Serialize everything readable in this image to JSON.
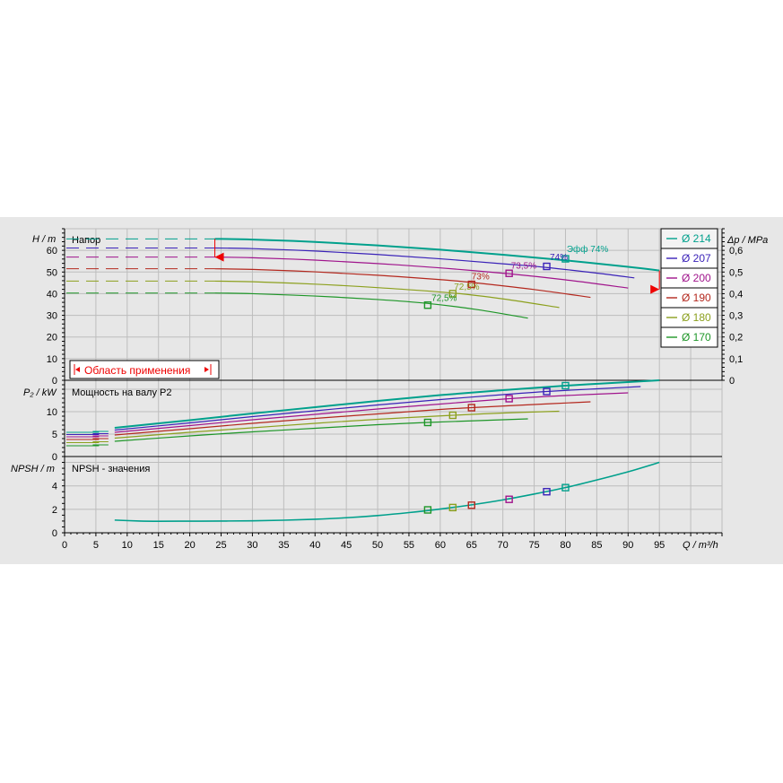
{
  "colors": {
    "d214": "#00a08c",
    "d207": "#3a22b8",
    "d200": "#a0148c",
    "d190": "#b4281e",
    "d180": "#8ca01e",
    "d170": "#1e9628",
    "grid": "#bdbdbd",
    "panel": "#e7e7e7",
    "limit": "#ee0000"
  },
  "legend": [
    "Ø 214",
    "Ø 207",
    "Ø 200",
    "Ø 190",
    "Ø 180",
    "Ø 170"
  ],
  "labels": {
    "head_title": "Напор",
    "head_axis": "H / m",
    "pressure_axis": "Δp / MPa",
    "power_title": "Мощность на валу P2",
    "power_axis": "P₂ / kW",
    "npsh_title": "NPSH - значения",
    "npsh_axis": "NPSH / m",
    "x_axis": "Q / m³/h",
    "application_area": "Область применения",
    "eff_label": "Эфф   74%",
    "eff_74": "74%",
    "eff_735": "73,5%",
    "eff_73": "73%",
    "eff_725a": "72,5%",
    "eff_725b": "72,5%"
  },
  "chart_data": [
    {
      "type": "line",
      "title": "Напор",
      "xlabel": "Q / m³/h",
      "ylabel": "H / m",
      "y2label": "Δp / MPa",
      "xlim": [
        0,
        105
      ],
      "ylim": [
        0,
        70
      ],
      "y2lim": [
        0,
        0.7
      ],
      "x_ticks": [
        0,
        5,
        10,
        15,
        20,
        25,
        30,
        35,
        40,
        45,
        50,
        55,
        60,
        65,
        70,
        75,
        80,
        85,
        90,
        95
      ],
      "y_ticks": [
        0,
        10,
        20,
        30,
        40,
        50,
        60
      ],
      "y2_ticks": [
        "0",
        "0,1",
        "0,2",
        "0,3",
        "0,4",
        "0,5",
        "0,6"
      ],
      "grid": true,
      "legend_position": "right",
      "series": [
        {
          "name": "Ø 214",
          "x": [
            24,
            30,
            40,
            50,
            60,
            70,
            80,
            90,
            95
          ],
          "y": [
            65.3,
            65.0,
            63.9,
            62.3,
            60.3,
            58.0,
            55.4,
            52.4,
            50.7
          ],
          "dashed_y": 65.3,
          "point": [
            80,
            56.1
          ],
          "eff": "74%"
        },
        {
          "name": "Ø 207",
          "x": [
            24,
            30,
            40,
            50,
            60,
            70,
            77,
            85,
            91
          ],
          "y": [
            61.1,
            60.8,
            59.7,
            58.1,
            56.1,
            53.8,
            52.1,
            49.5,
            47.3
          ],
          "dashed_y": 61.1,
          "point": [
            77,
            52.6
          ],
          "eff": "74%"
        },
        {
          "name": "Ø 200",
          "x": [
            24,
            30,
            40,
            50,
            60,
            71,
            80,
            90
          ],
          "y": [
            56.9,
            56.6,
            55.5,
            53.9,
            51.9,
            49.2,
            46.4,
            42.6
          ],
          "dashed_y": 56.9,
          "point": [
            71,
            49.4
          ],
          "eff": "73,5%"
        },
        {
          "name": "Ø 190",
          "x": [
            24,
            30,
            40,
            50,
            60,
            65,
            75,
            84
          ],
          "y": [
            51.5,
            51.2,
            50.1,
            48.5,
            46.5,
            45.2,
            41.9,
            38.3
          ],
          "dashed_y": 51.5,
          "point": [
            65,
            44.3
          ],
          "eff": "73%"
        },
        {
          "name": "Ø 180",
          "x": [
            24,
            30,
            40,
            50,
            62,
            70,
            79
          ],
          "y": [
            45.8,
            45.5,
            44.4,
            42.8,
            40.3,
            37.6,
            33.6
          ],
          "dashed_y": 45.8,
          "point": [
            62,
            40.0
          ],
          "eff": "72,5%"
        },
        {
          "name": "Ø 170",
          "x": [
            24,
            30,
            40,
            50,
            58,
            66,
            74
          ],
          "y": [
            40.3,
            40.0,
            38.9,
            37.3,
            35.5,
            32.6,
            28.7
          ],
          "dashed_y": 40.3,
          "point": [
            58,
            34.7
          ],
          "eff": "72,5%"
        }
      ],
      "application_area_q": [
        24,
        95
      ]
    },
    {
      "type": "line",
      "title": "Мощность на валу P2",
      "xlabel": "Q / m³/h",
      "ylabel": "P₂ / kW",
      "xlim": [
        0,
        105
      ],
      "ylim": [
        0,
        17
      ],
      "y_ticks": [
        0,
        5,
        10
      ],
      "grid": true,
      "series": [
        {
          "name": "Ø 214",
          "x": [
            8,
            20,
            30,
            40,
            50,
            60,
            70,
            80,
            90,
            95
          ],
          "y": [
            6.4,
            8.1,
            9.6,
            11.0,
            12.4,
            13.7,
            14.8,
            15.8,
            16.6,
            17.0
          ],
          "point": [
            80,
            15.8
          ]
        },
        {
          "name": "Ø 207",
          "x": [
            8,
            20,
            30,
            40,
            50,
            60,
            70,
            77,
            85,
            92
          ],
          "y": [
            5.9,
            7.5,
            8.9,
            10.2,
            11.5,
            12.7,
            13.8,
            14.5,
            15.1,
            15.6
          ],
          "point": [
            77,
            14.5
          ]
        },
        {
          "name": "Ø 200",
          "x": [
            8,
            20,
            30,
            40,
            50,
            60,
            71,
            80,
            90
          ],
          "y": [
            5.4,
            6.9,
            8.2,
            9.4,
            10.6,
            11.7,
            12.9,
            13.6,
            14.2
          ],
          "point": [
            71,
            12.9
          ]
        },
        {
          "name": "Ø 190",
          "x": [
            8,
            20,
            30,
            40,
            50,
            60,
            65,
            75,
            84
          ],
          "y": [
            4.8,
            6.2,
            7.4,
            8.5,
            9.5,
            10.5,
            10.9,
            11.6,
            12.2
          ],
          "point": [
            65,
            10.9
          ]
        },
        {
          "name": "Ø 180",
          "x": [
            8,
            20,
            30,
            40,
            50,
            62,
            70,
            79
          ],
          "y": [
            4.1,
            5.4,
            6.4,
            7.4,
            8.3,
            9.2,
            9.7,
            10.1
          ],
          "point": [
            62,
            9.2
          ]
        },
        {
          "name": "Ø 170",
          "x": [
            8,
            20,
            30,
            40,
            50,
            58,
            66,
            74
          ],
          "y": [
            3.4,
            4.6,
            5.5,
            6.3,
            7.1,
            7.6,
            8.0,
            8.4
          ],
          "point": [
            58,
            7.6
          ]
        }
      ],
      "left_ticks_x": [
        [
          1,
          5,
          5.6
        ],
        [
          5,
          8,
          5.6
        ]
      ]
    },
    {
      "type": "line",
      "title": "NPSH - значения",
      "xlabel": "Q / m³/h",
      "ylabel": "NPSH / m",
      "xlim": [
        0,
        105
      ],
      "ylim": [
        0,
        6.5
      ],
      "y_ticks": [
        0,
        2,
        4
      ],
      "grid": true,
      "series": [
        {
          "name": "Ø 214",
          "x": [
            8,
            12,
            15,
            20,
            25,
            30,
            35,
            40,
            45,
            50,
            55,
            60,
            65,
            70,
            75,
            80,
            85,
            90,
            95
          ],
          "y": [
            1.08,
            1.0,
            0.98,
            0.99,
            1.0,
            1.02,
            1.07,
            1.15,
            1.28,
            1.47,
            1.72,
            2.02,
            2.38,
            2.8,
            3.3,
            3.85,
            4.5,
            5.2,
            6.0
          ]
        }
      ],
      "points": [
        [
          58,
          1.95
        ],
        [
          62,
          2.15
        ],
        [
          65,
          2.35
        ],
        [
          71,
          2.85
        ],
        [
          77,
          3.5
        ],
        [
          80,
          3.85
        ]
      ]
    }
  ]
}
